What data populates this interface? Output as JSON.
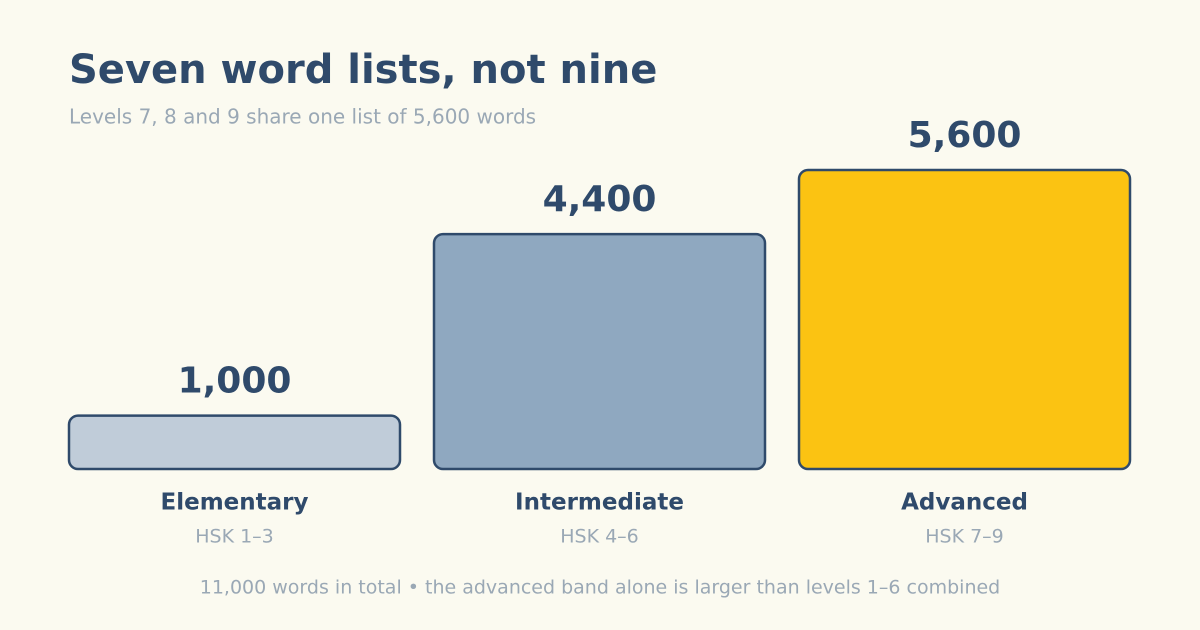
{
  "chart_data": {
    "type": "bar",
    "title": "Seven word lists, not nine",
    "subtitle": "Levels 7, 8 and 9 share one list of 5,600 words",
    "categories": [
      "Elementary",
      "Intermediate",
      "Advanced"
    ],
    "category_sublabels": [
      "HSK 1–3",
      "HSK 4–6",
      "HSK 7–9"
    ],
    "values": [
      1000,
      4400,
      5600
    ],
    "value_labels": [
      "1,000",
      "4,400",
      "5,600"
    ],
    "colors": [
      "#c0ccd9",
      "#8fa8c0",
      "#fbc312"
    ],
    "footnote": "11,000 words in total • the advanced band alone is larger than levels 1–6 combined"
  }
}
